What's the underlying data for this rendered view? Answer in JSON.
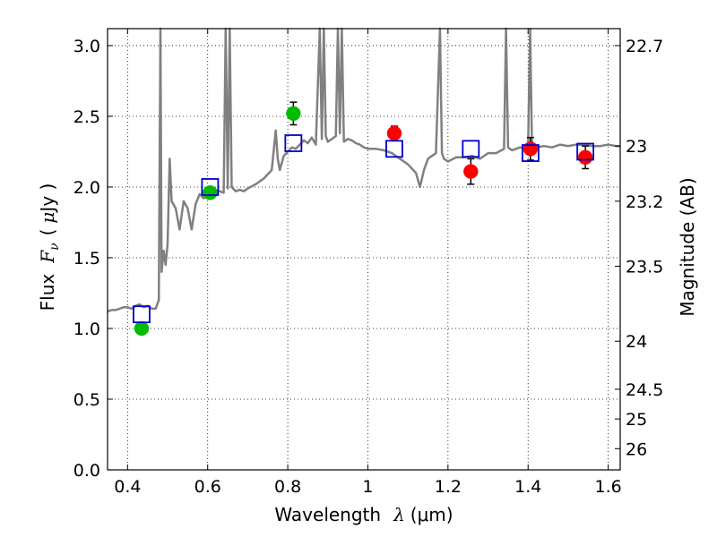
{
  "chart_data": {
    "type": "scatter",
    "title": "",
    "xlabel": "Wavelength",
    "xlabel_symbol": "λ",
    "xlabel_unit": "(μm)",
    "ylabel_left": "Flux",
    "ylabel_left_symbol": "F",
    "ylabel_left_subscript": "ν",
    "ylabel_left_unit_open": "(",
    "ylabel_left_unit_mu": "μ",
    "ylabel_left_unit_rest": "Jy )",
    "ylabel_right": "Magnitude (AB)",
    "xlim": [
      0.35,
      1.63
    ],
    "ylim": [
      0.0,
      3.12
    ],
    "grid": true,
    "grid_style": "dotted",
    "xticks": [
      0.4,
      0.6,
      0.8,
      1.0,
      1.2,
      1.4,
      1.6
    ],
    "xtick_labels": [
      "0.4",
      "0.6",
      "0.8",
      "1",
      "1.2",
      "1.4",
      "1.6"
    ],
    "yticks": [
      0.0,
      0.5,
      1.0,
      1.5,
      2.0,
      2.5,
      3.0
    ],
    "ytick_labels": [
      "0.0",
      "0.5",
      "1.0",
      "1.5",
      "2.0",
      "2.5",
      "3.0"
    ],
    "right_ticks": [
      {
        "label": "22.7",
        "flux": 3.0
      },
      {
        "label": "23",
        "flux": 2.29
      },
      {
        "label": "23.2",
        "flux": 1.9
      },
      {
        "label": "23.5",
        "flux": 1.44
      },
      {
        "label": "24",
        "flux": 0.91
      },
      {
        "label": "24.5",
        "flux": 0.57
      },
      {
        "label": "25",
        "flux": 0.36
      },
      {
        "label": "26",
        "flux": 0.15
      }
    ],
    "colors": {
      "model": "#808080",
      "optical": "#00bb00",
      "nir": "#ff0000",
      "model_phot": "#0000cc",
      "errorbar": "#000000",
      "grid": "#000000"
    },
    "series": [
      {
        "kind": "model_spectrum",
        "x": [
          0.35,
          0.36,
          0.37,
          0.38,
          0.39,
          0.4,
          0.41,
          0.42,
          0.43,
          0.44,
          0.45,
          0.46,
          0.47,
          0.478,
          0.482,
          0.485,
          0.49,
          0.495,
          0.5,
          0.505,
          0.51,
          0.52,
          0.53,
          0.54,
          0.55,
          0.56,
          0.57,
          0.58,
          0.59,
          0.6,
          0.62,
          0.64,
          0.645,
          0.65,
          0.655,
          0.66,
          0.67,
          0.68,
          0.69,
          0.7,
          0.72,
          0.74,
          0.76,
          0.77,
          0.775,
          0.78,
          0.79,
          0.8,
          0.81,
          0.82,
          0.83,
          0.84,
          0.85,
          0.86,
          0.87,
          0.88,
          0.885,
          0.89,
          0.895,
          0.9,
          0.91,
          0.92,
          0.925,
          0.93,
          0.935,
          0.94,
          0.95,
          0.96,
          0.97,
          0.98,
          0.99,
          1.0,
          1.02,
          1.04,
          1.06,
          1.08,
          1.1,
          1.12,
          1.13,
          1.14,
          1.15,
          1.16,
          1.17,
          1.18,
          1.185,
          1.19,
          1.2,
          1.22,
          1.24,
          1.26,
          1.28,
          1.3,
          1.32,
          1.34,
          1.345,
          1.35,
          1.36,
          1.38,
          1.4,
          1.405,
          1.41,
          1.42,
          1.44,
          1.46,
          1.48,
          1.5,
          1.52,
          1.54,
          1.56,
          1.58,
          1.6,
          1.62,
          1.63
        ],
        "y": [
          1.12,
          1.13,
          1.13,
          1.14,
          1.15,
          1.15,
          1.14,
          1.16,
          1.17,
          1.15,
          1.16,
          1.14,
          1.14,
          1.2,
          3.12,
          1.4,
          1.55,
          1.45,
          1.6,
          2.2,
          1.9,
          1.85,
          1.7,
          1.9,
          1.85,
          1.7,
          1.88,
          1.95,
          1.92,
          1.95,
          1.98,
          1.96,
          3.12,
          1.99,
          3.12,
          2.0,
          1.97,
          1.98,
          1.97,
          1.99,
          2.02,
          2.06,
          2.12,
          2.4,
          2.2,
          2.12,
          2.22,
          2.25,
          2.28,
          2.27,
          2.3,
          2.33,
          2.31,
          2.35,
          2.3,
          3.12,
          2.34,
          3.12,
          2.36,
          2.32,
          2.34,
          2.36,
          3.12,
          2.38,
          3.12,
          2.32,
          2.34,
          2.33,
          2.31,
          2.3,
          2.28,
          2.27,
          2.27,
          2.26,
          2.24,
          2.2,
          2.16,
          2.1,
          2.0,
          2.12,
          2.2,
          2.22,
          2.24,
          3.12,
          2.24,
          2.2,
          2.18,
          2.21,
          2.21,
          2.22,
          2.2,
          2.24,
          2.24,
          2.27,
          3.12,
          2.28,
          2.26,
          2.28,
          2.27,
          3.12,
          2.24,
          2.28,
          2.29,
          2.28,
          2.3,
          2.29,
          2.3,
          2.3,
          2.29,
          2.29,
          2.3,
          2.29,
          2.29
        ]
      },
      {
        "kind": "observed",
        "name": "",
        "color_key": "optical",
        "points": [
          {
            "x": 0.435,
            "y": 1.0,
            "err": 0.03
          },
          {
            "x": 0.606,
            "y": 1.96,
            "err": 0.04
          },
          {
            "x": 0.814,
            "y": 2.52,
            "err": 0.08
          }
        ]
      },
      {
        "kind": "observed",
        "name": "",
        "color_key": "nir",
        "points": [
          {
            "x": 1.066,
            "y": 2.38,
            "err": 0.05
          },
          {
            "x": 1.257,
            "y": 2.11,
            "err": 0.09
          },
          {
            "x": 1.406,
            "y": 2.27,
            "err": 0.08
          },
          {
            "x": 1.543,
            "y": 2.21,
            "err": 0.08
          }
        ]
      },
      {
        "kind": "model_photometry",
        "name": "",
        "color_key": "model_phot",
        "points": [
          {
            "x": 0.435,
            "y": 1.1
          },
          {
            "x": 0.606,
            "y": 2.0
          },
          {
            "x": 0.814,
            "y": 2.31
          },
          {
            "x": 1.066,
            "y": 2.27
          },
          {
            "x": 1.257,
            "y": 2.27
          },
          {
            "x": 1.406,
            "y": 2.24
          },
          {
            "x": 1.543,
            "y": 2.25
          }
        ]
      }
    ]
  }
}
